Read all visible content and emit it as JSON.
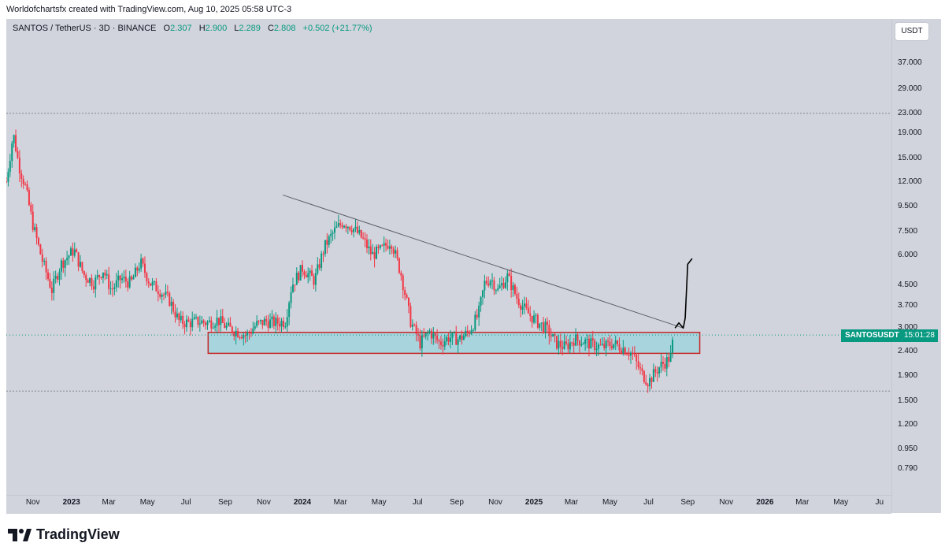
{
  "header": {
    "attribution": "Worldofchartsfx created with TradingView.com, Aug 10, 2025 05:58 UTC-3"
  },
  "legend": {
    "symbol": "SANTOS / TetherUS · 3D · BINANCE",
    "o_label": "O",
    "o_value": "2.307",
    "h_label": "H",
    "h_value": "2.900",
    "l_label": "L",
    "l_value": "2.289",
    "c_label": "C",
    "c_value": "2.808",
    "change": "+0.502 (+21.77%)"
  },
  "currency_button": "USDT",
  "symbol_tag": "SANTOSUSDT",
  "countdown": "15:01:28",
  "logo_text": "TradingView",
  "colors": {
    "up": "#089981",
    "down": "#f23645",
    "zone": "#a8d4dd",
    "zone_border": "#c62828"
  },
  "chart_data": {
    "type": "candlestick",
    "title": "SANTOS / TetherUS · 3D · BINANCE",
    "y_scale": "log",
    "ylim": [
      0.7,
      45
    ],
    "x_range": [
      "2022-09-20",
      "2026-07-20"
    ],
    "price_ticks": [
      "37.000",
      "29.000",
      "23.000",
      "19.000",
      "15.000",
      "12.000",
      "9.500",
      "7.500",
      "6.000",
      "4.500",
      "3.700",
      "3.000",
      "2.400",
      "1.900",
      "1.500",
      "1.200",
      "0.950",
      "0.790"
    ],
    "time_ticks": [
      {
        "label": "Nov",
        "date": "2022-11-01",
        "year": false
      },
      {
        "label": "2023",
        "date": "2023-01-01",
        "year": true
      },
      {
        "label": "Mar",
        "date": "2023-03-01",
        "year": false
      },
      {
        "label": "May",
        "date": "2023-05-01",
        "year": false
      },
      {
        "label": "Jul",
        "date": "2023-07-01",
        "year": false
      },
      {
        "label": "Sep",
        "date": "2023-09-01",
        "year": false
      },
      {
        "label": "Nov",
        "date": "2023-11-01",
        "year": false
      },
      {
        "label": "2024",
        "date": "2024-01-01",
        "year": true
      },
      {
        "label": "Mar",
        "date": "2024-03-01",
        "year": false
      },
      {
        "label": "May",
        "date": "2024-05-01",
        "year": false
      },
      {
        "label": "Jul",
        "date": "2024-07-01",
        "year": false
      },
      {
        "label": "Sep",
        "date": "2024-09-01",
        "year": false
      },
      {
        "label": "Nov",
        "date": "2024-11-01",
        "year": false
      },
      {
        "label": "2025",
        "date": "2025-01-01",
        "year": true
      },
      {
        "label": "Mar",
        "date": "2025-03-01",
        "year": false
      },
      {
        "label": "May",
        "date": "2025-05-01",
        "year": false
      },
      {
        "label": "Jul",
        "date": "2025-07-01",
        "year": false
      },
      {
        "label": "Sep",
        "date": "2025-09-01",
        "year": false
      },
      {
        "label": "Nov",
        "date": "2025-11-01",
        "year": false
      },
      {
        "label": "2026",
        "date": "2026-01-01",
        "year": true
      },
      {
        "label": "Mar",
        "date": "2026-03-01",
        "year": false
      },
      {
        "label": "May",
        "date": "2026-05-01",
        "year": false
      },
      {
        "label": "Ju",
        "date": "2026-07-01",
        "year": false
      }
    ],
    "series_close": [
      [
        "2022-09-20",
        12.0
      ],
      [
        "2022-10-01",
        19.0
      ],
      [
        "2022-10-10",
        14.0
      ],
      [
        "2022-10-20",
        11.5
      ],
      [
        "2022-11-01",
        8.0
      ],
      [
        "2022-11-15",
        5.8
      ],
      [
        "2022-12-01",
        4.3
      ],
      [
        "2022-12-15",
        5.5
      ],
      [
        "2023-01-05",
        6.3
      ],
      [
        "2023-01-20",
        5.0
      ],
      [
        "2023-02-05",
        4.6
      ],
      [
        "2023-02-20",
        5.2
      ],
      [
        "2023-03-05",
        4.3
      ],
      [
        "2023-03-20",
        4.8
      ],
      [
        "2023-04-05",
        4.6
      ],
      [
        "2023-04-20",
        5.6
      ],
      [
        "2023-05-05",
        4.6
      ],
      [
        "2023-05-20",
        4.3
      ],
      [
        "2023-06-05",
        3.9
      ],
      [
        "2023-06-20",
        3.2
      ],
      [
        "2023-07-05",
        3.15
      ],
      [
        "2023-07-20",
        3.2
      ],
      [
        "2023-08-05",
        3.15
      ],
      [
        "2023-08-20",
        3.25
      ],
      [
        "2023-09-05",
        3.0
      ],
      [
        "2023-09-20",
        2.9
      ],
      [
        "2023-10-05",
        2.8
      ],
      [
        "2023-10-20",
        3.1
      ],
      [
        "2023-11-05",
        3.2
      ],
      [
        "2023-11-20",
        3.15
      ],
      [
        "2023-12-05",
        3.2
      ],
      [
        "2023-12-15",
        4.5
      ],
      [
        "2024-01-01",
        5.3
      ],
      [
        "2024-01-20",
        4.7
      ],
      [
        "2024-02-05",
        6.5
      ],
      [
        "2024-02-20",
        7.5
      ],
      [
        "2024-03-05",
        8.2
      ],
      [
        "2024-03-20",
        7.8
      ],
      [
        "2024-04-05",
        7.0
      ],
      [
        "2024-04-20",
        6.0
      ],
      [
        "2024-05-05",
        6.3
      ],
      [
        "2024-05-20",
        6.9
      ],
      [
        "2024-06-05",
        5.0
      ],
      [
        "2024-06-20",
        3.2
      ],
      [
        "2024-07-05",
        2.6
      ],
      [
        "2024-07-20",
        2.9
      ],
      [
        "2024-08-05",
        2.6
      ],
      [
        "2024-08-20",
        2.75
      ],
      [
        "2024-09-05",
        2.7
      ],
      [
        "2024-09-20",
        2.9
      ],
      [
        "2024-10-05",
        3.4
      ],
      [
        "2024-10-15",
        4.6
      ],
      [
        "2024-10-25",
        4.8
      ],
      [
        "2024-11-05",
        4.3
      ],
      [
        "2024-11-20",
        4.9
      ],
      [
        "2024-12-05",
        4.0
      ],
      [
        "2024-12-20",
        3.5
      ],
      [
        "2025-01-05",
        3.2
      ],
      [
        "2025-01-20",
        3.0
      ],
      [
        "2025-02-05",
        2.6
      ],
      [
        "2025-02-20",
        2.5
      ],
      [
        "2025-03-05",
        2.7
      ],
      [
        "2025-03-20",
        2.65
      ],
      [
        "2025-04-05",
        2.55
      ],
      [
        "2025-04-20",
        2.5
      ],
      [
        "2025-05-05",
        2.6
      ],
      [
        "2025-05-20",
        2.5
      ],
      [
        "2025-06-05",
        2.35
      ],
      [
        "2025-06-20",
        1.95
      ],
      [
        "2025-07-01",
        1.8
      ],
      [
        "2025-07-10",
        1.95
      ],
      [
        "2025-07-20",
        2.1
      ],
      [
        "2025-07-30",
        2.2
      ],
      [
        "2025-08-05",
        2.3
      ],
      [
        "2025-08-10",
        2.808
      ]
    ],
    "annotations": {
      "support_zone": {
        "from": "2023-08-05",
        "to": "2025-09-20",
        "low": 2.36,
        "high": 2.88
      },
      "trendline": {
        "from": [
          "2023-12-01",
          10.6
        ],
        "to": [
          "2025-08-25",
          3.0
        ]
      },
      "high_line": 23.0,
      "low_line": 1.65,
      "projection": [
        [
          "2025-08-12",
          3.0
        ],
        [
          "2025-08-18",
          3.15
        ],
        [
          "2025-08-25",
          3.0
        ],
        [
          "2025-08-28",
          3.3
        ],
        [
          "2025-09-01",
          5.5
        ],
        [
          "2025-09-08",
          5.8
        ]
      ]
    }
  }
}
